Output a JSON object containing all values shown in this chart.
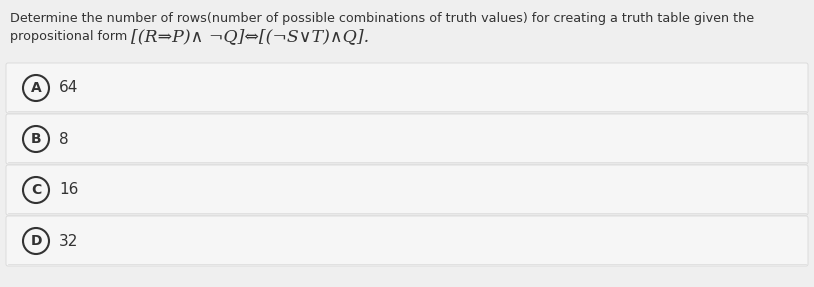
{
  "title_line1": "Determine the number of rows(number of possible combinations of truth values) for creating a truth table given the",
  "title_line2_prefix": "propositional form ",
  "formula": "[(R⇒P)∧ ¬Q]⇔[(¬S∨T)∧Q].",
  "options": [
    {
      "label": "A",
      "value": "64"
    },
    {
      "label": "B",
      "value": "8"
    },
    {
      "label": "C",
      "value": "16"
    },
    {
      "label": "D",
      "value": "32"
    }
  ],
  "bg_color": "#efefef",
  "option_bg": "#f6f6f6",
  "option_border": "#d8d8d8",
  "text_color": "#333333",
  "circle_color": "#333333",
  "title_fontsize": 9.2,
  "option_fontsize": 11,
  "formula_fontsize": 12.5,
  "prefix_fontsize": 9.2,
  "fig_width": 8.14,
  "fig_height": 2.87,
  "dpi": 100
}
